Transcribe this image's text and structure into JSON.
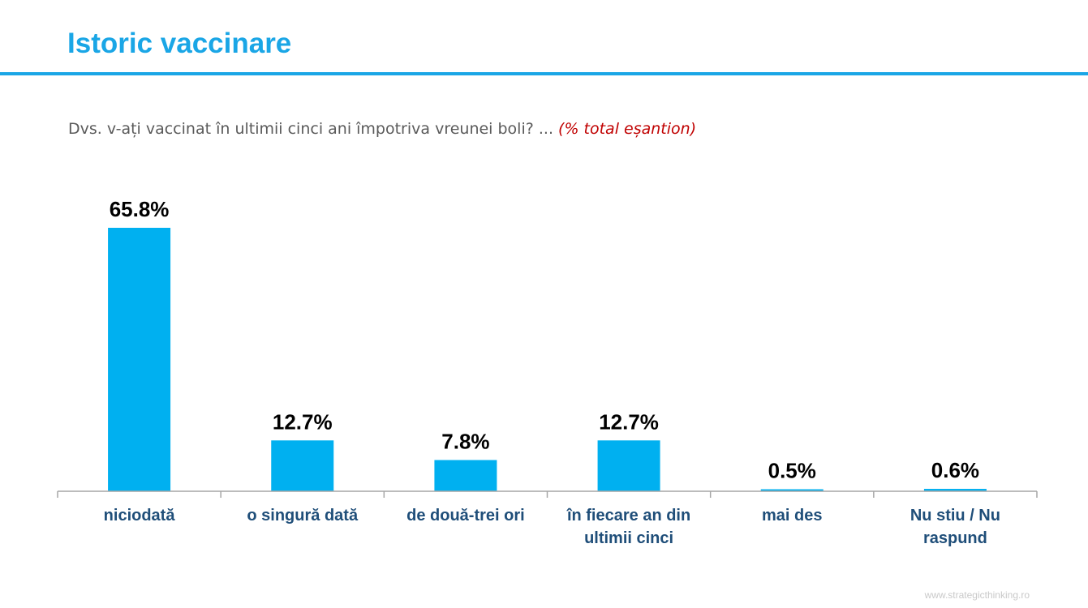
{
  "header": {
    "title": "Istoric vaccinare"
  },
  "question": {
    "text": "Dvs. v-ați vaccinat în ultimii cinci ani împotriva vreunei boli? ...",
    "note": "(% total eșantion)"
  },
  "footer": {
    "url": "www.strategicthinking.ro"
  },
  "colors": {
    "title": "#1aa6e6",
    "rule": "#1aa6e6",
    "bar": "#00b0f0",
    "category_label": "#1f4e79",
    "value_label": "#000000",
    "note": "#c00000",
    "axis": "#a6a6a6"
  },
  "chart_data": {
    "type": "bar",
    "categories": [
      [
        "niciodată"
      ],
      [
        "o singură dată"
      ],
      [
        "de două-trei ori"
      ],
      [
        "în fiecare an din",
        "ultimii cinci"
      ],
      [
        "mai des"
      ],
      [
        "Nu stiu / Nu",
        "raspund"
      ]
    ],
    "values": [
      65.8,
      12.7,
      7.8,
      12.7,
      0.5,
      0.6
    ],
    "value_labels": [
      "65.8%",
      "12.7%",
      "7.8%",
      "12.7%",
      "0.5%",
      "0.6%"
    ],
    "title": "",
    "xlabel": "",
    "ylabel": "",
    "ylim": [
      0,
      65.8
    ],
    "grid": false,
    "legend": "none"
  }
}
